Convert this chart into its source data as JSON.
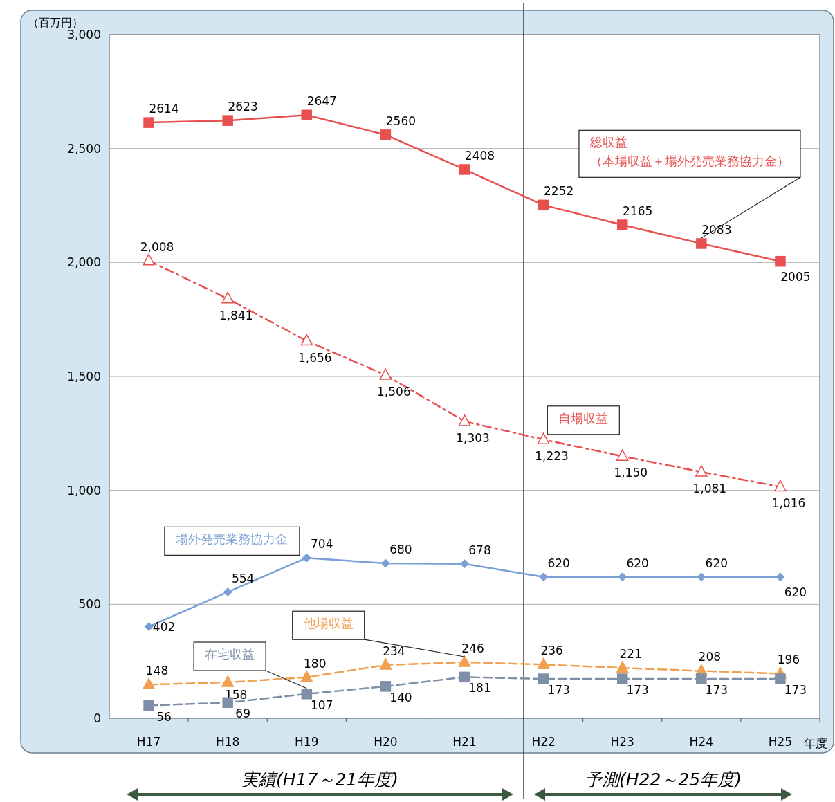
{
  "chart_data": {
    "type": "line",
    "ylabel": "（百万円）",
    "xlabel": "年度",
    "categories": [
      "H17",
      "H18",
      "H19",
      "H20",
      "H21",
      "H22",
      "H23",
      "H24",
      "H25"
    ],
    "ylim": [
      0,
      3000
    ],
    "yticks": [
      0,
      500,
      {
        "value": 1000,
        "label": "1,000"
      },
      {
        "value": 1500,
        "label": "1,500"
      },
      {
        "value": 2000,
        "label": "2,000"
      },
      {
        "value": 2500,
        "label": "2,500"
      },
      {
        "value": 3000,
        "label": "3,000"
      }
    ],
    "grid": "y",
    "legend": false,
    "series": [
      {
        "name": "総収益（本場収益＋場外発売業務協力金）",
        "color": "#e8504f",
        "marker": "square",
        "line_style": "solid",
        "values": [
          2614,
          2623,
          2647,
          2560,
          2408,
          2252,
          2165,
          2083,
          2005
        ],
        "value_labels": [
          "2614",
          "2623",
          "2647",
          "2560",
          "2408",
          "2252",
          "2165",
          "2083",
          "2005"
        ]
      },
      {
        "name": "自場収益",
        "color": "#e8504f",
        "marker": "triangle",
        "line_style": "dashdot",
        "values": [
          2008,
          1841,
          1656,
          1506,
          1303,
          1223,
          1150,
          1081,
          1016
        ],
        "value_labels": [
          "2,008",
          "1,841",
          "1,656",
          "1,506",
          "1,303",
          "1,223",
          "1,150",
          "1,081",
          "1,016"
        ]
      },
      {
        "name": "場外発売業務協力金",
        "color": "#7a9fd6",
        "marker": "diamond",
        "line_style": "solid",
        "values": [
          402,
          554,
          704,
          680,
          678,
          620,
          620,
          620,
          620
        ],
        "value_labels": [
          "402",
          "554",
          "704",
          "680",
          "678",
          "620",
          "620",
          "620",
          "620"
        ]
      },
      {
        "name": "他場収益",
        "color": "#f0a050",
        "marker": "triangle",
        "line_style": "dashed",
        "values": [
          148,
          158,
          180,
          234,
          246,
          236,
          221,
          208,
          196
        ],
        "value_labels": [
          "148",
          "158",
          "180",
          "234",
          "246",
          "236",
          "221",
          "208",
          "196"
        ]
      },
      {
        "name": "在宅収益",
        "color": "#7f8fa8",
        "marker": "square",
        "line_style": "dashed",
        "values": [
          56,
          69,
          107,
          140,
          181,
          173,
          173,
          173,
          173
        ],
        "value_labels": [
          "56",
          "69",
          "107",
          "140",
          "181",
          "173",
          "173",
          "173",
          "173"
        ]
      }
    ],
    "ref_lines": [
      {
        "axis": "x",
        "value": "H22",
        "label": null,
        "color": "#222222",
        "line_style": "solid"
      }
    ],
    "annotations": [
      "実績(H17～21年度)",
      "予測(H22～25年度)"
    ]
  }
}
